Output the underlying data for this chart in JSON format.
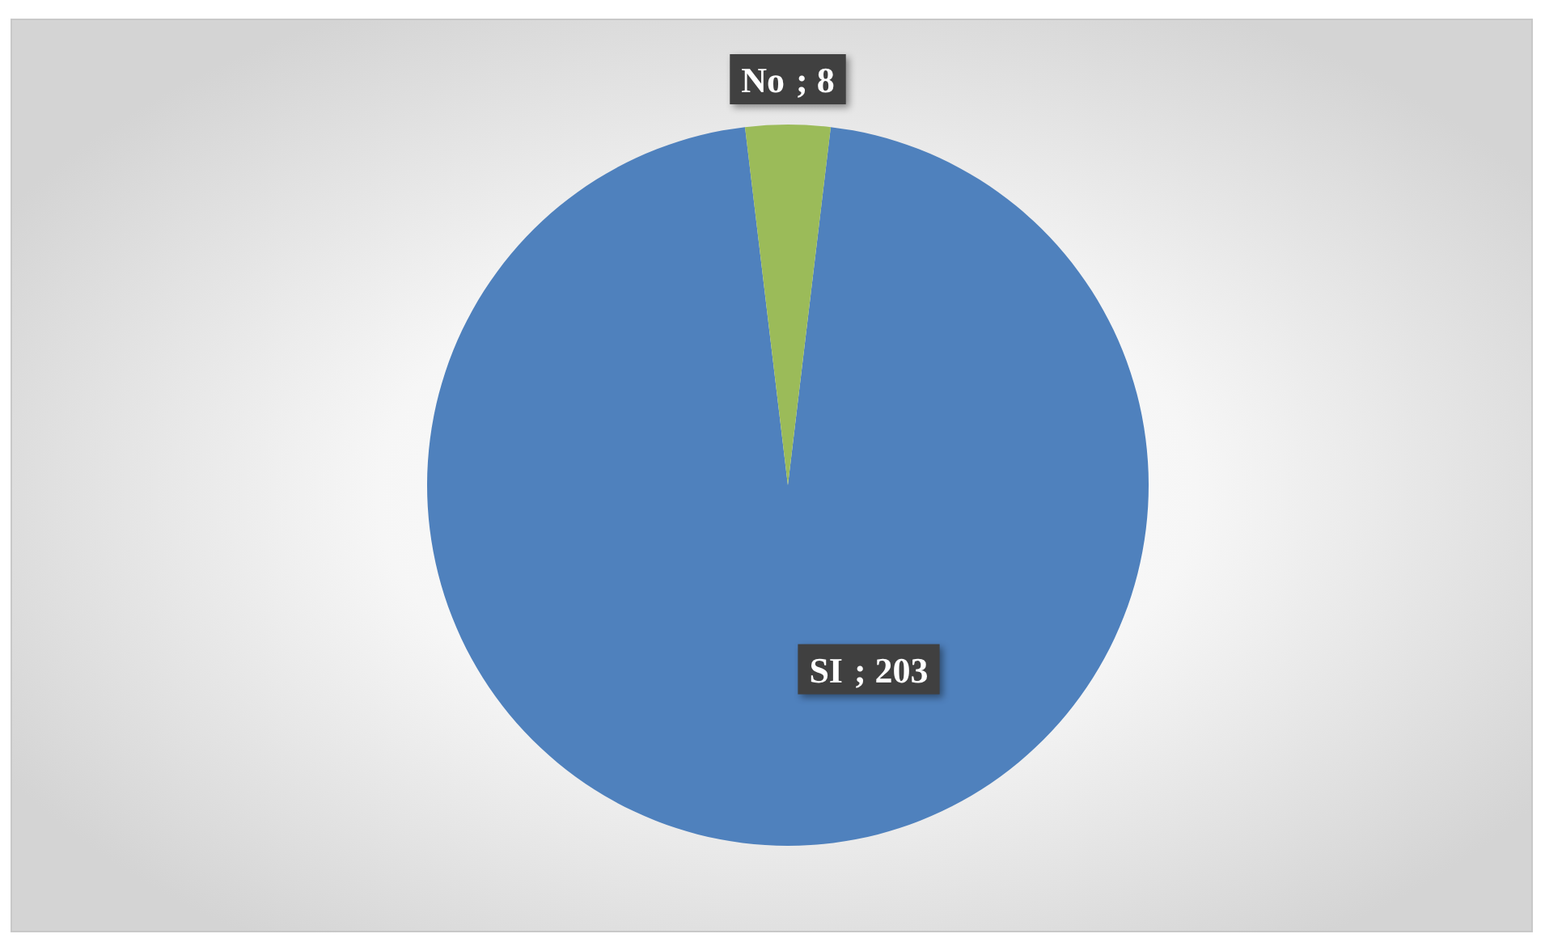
{
  "chart_data": {
    "type": "pie",
    "categories": [
      "SI",
      "No"
    ],
    "values": [
      203,
      8
    ],
    "colors": [
      "#4f81bd",
      "#9bbb59"
    ],
    "value_labels": [
      "; 203",
      "; 8"
    ]
  }
}
